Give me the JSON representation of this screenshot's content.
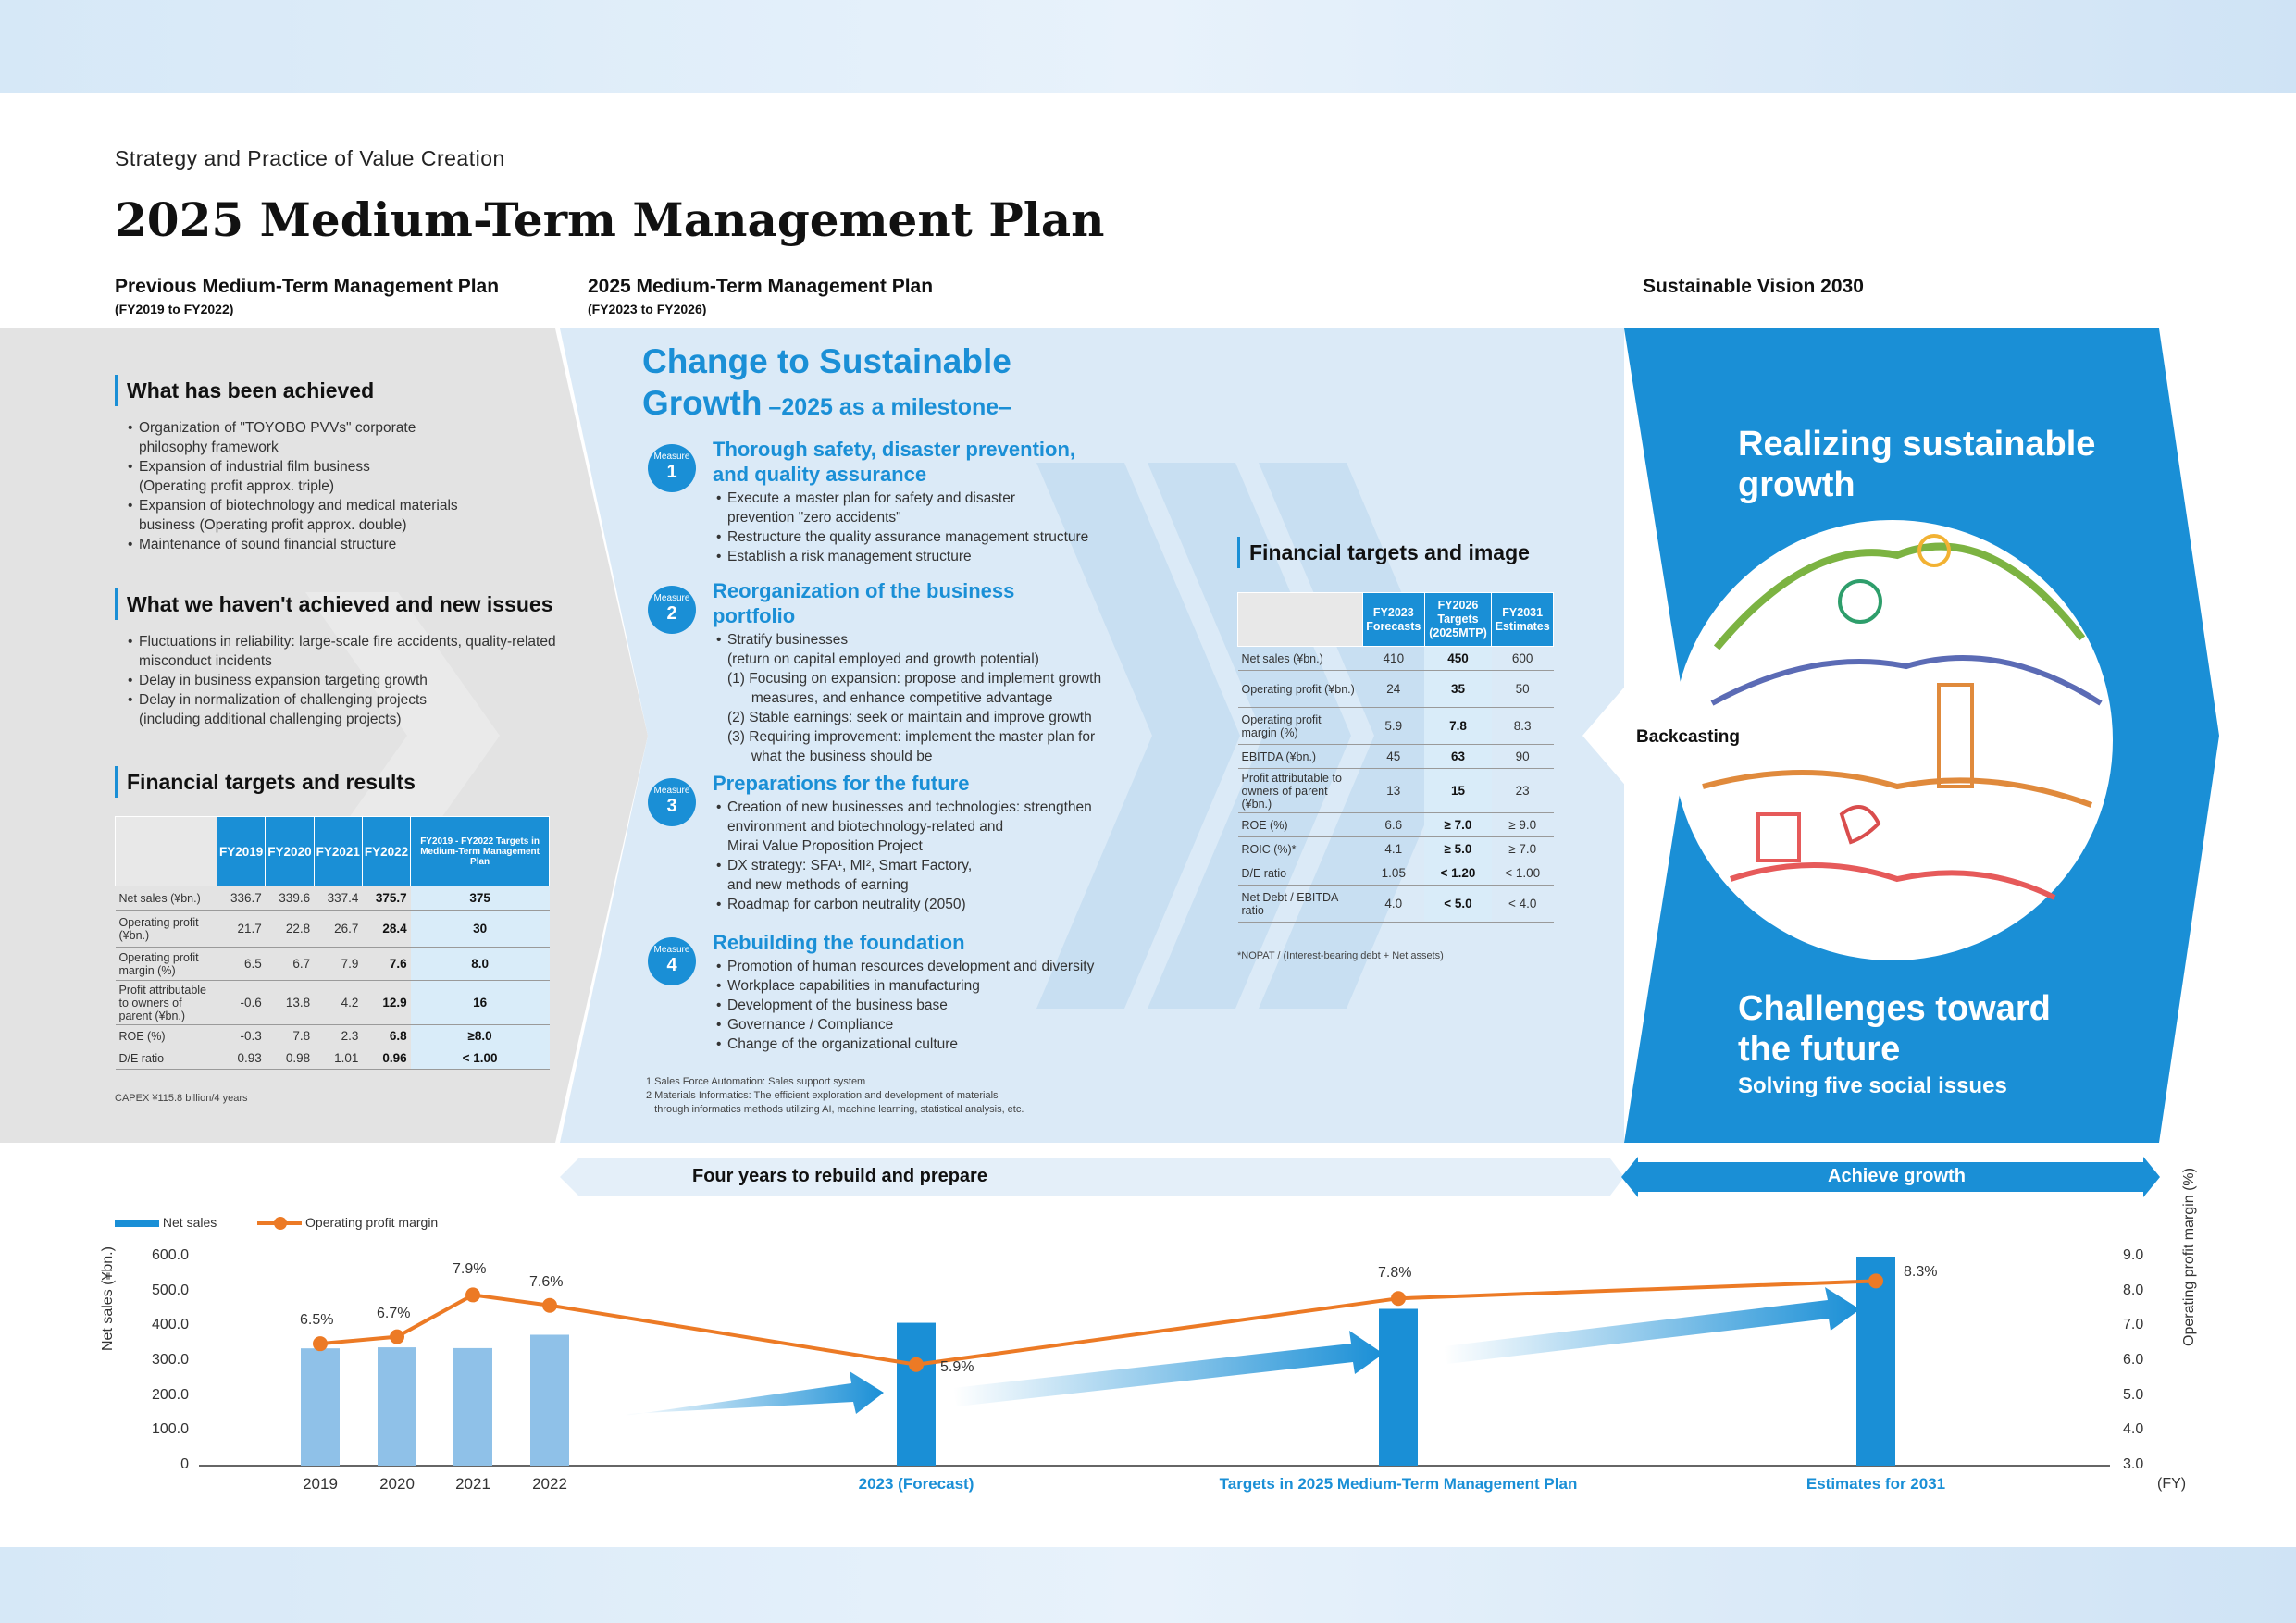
{
  "header": {
    "section": "Strategy and Practice of Value Creation",
    "title": "2025 Medium-Term Management Plan"
  },
  "columns": {
    "previous": {
      "title": "Previous Medium-Term Management Plan",
      "period": "(FY2019 to FY2022)"
    },
    "current": {
      "title": "2025 Medium-Term Management Plan",
      "period": "(FY2023 to FY2026)"
    },
    "vision": {
      "title": "Sustainable Vision 2030"
    }
  },
  "achieved": {
    "title": "What has been achieved",
    "items": [
      [
        "Organization of \"TOYOBO PVVs\" corporate",
        "philosophy framework"
      ],
      [
        "Expansion of industrial film business",
        "(Operating profit approx. triple)"
      ],
      [
        "Expansion of biotechnology and medical materials",
        "business (Operating profit approx. double)"
      ],
      [
        "Maintenance of  sound financial structure"
      ]
    ]
  },
  "not_achieved": {
    "title": "What we haven't achieved and new issues",
    "items": [
      [
        "Fluctuations in reliability: large-scale fire accidents, quality-related",
        "misconduct incidents"
      ],
      [
        "Delay in business expansion targeting growth"
      ],
      [
        "Delay in normalization of challenging projects",
        "(including additional challenging projects)"
      ]
    ]
  },
  "results_table": {
    "title": "Financial targets and results",
    "headers": [
      "FY2019",
      "FY2020",
      "FY2021",
      "FY2022",
      "FY2019 - FY2022 Targets in Medium-Term Management Plan"
    ],
    "rows": [
      {
        "label": "Net sales (¥bn.)",
        "values": [
          "336.7",
          "339.6",
          "337.4",
          "375.7",
          "375"
        ]
      },
      {
        "label": "Operating profit (¥bn.)",
        "values": [
          "21.7",
          "22.8",
          "26.7",
          "28.4",
          "30"
        ]
      },
      {
        "label": "Operating profit margin (%)",
        "values": [
          "6.5",
          "6.7",
          "7.9",
          "7.6",
          "8.0"
        ]
      },
      {
        "label": "Profit attributable to owners of parent (¥bn.)",
        "values": [
          "-0.6",
          "13.8",
          "4.2",
          "12.9",
          "16"
        ]
      },
      {
        "label": "ROE (%)",
        "values": [
          "-0.3",
          "7.8",
          "2.3",
          "6.8",
          "≥8.0"
        ]
      },
      {
        "label": "D/E ratio",
        "values": [
          "0.93",
          "0.98",
          "1.01",
          "0.96",
          "< 1.00"
        ]
      }
    ],
    "note": "CAPEX ¥115.8 billion/4 years"
  },
  "change": {
    "title_line1": "Change to Sustainable",
    "title_line2": "Growth",
    "subtitle": " –2025 as a milestone–"
  },
  "measures": [
    {
      "badge": "Measure",
      "number": "1",
      "title": [
        "Thorough safety, disaster prevention,",
        "and quality assurance"
      ],
      "items": [
        {
          "b": true,
          "t": "Execute a master plan for safety and disaster"
        },
        {
          "b": false,
          "t": "prevention \"zero accidents\""
        },
        {
          "b": true,
          "t": "Restructure the quality assurance management structure"
        },
        {
          "b": true,
          "t": "Establish a risk management structure"
        }
      ]
    },
    {
      "badge": "Measure",
      "number": "2",
      "title": [
        "Reorganization of the business",
        "portfolio"
      ],
      "items": [
        {
          "b": true,
          "t": "Stratify businesses"
        },
        {
          "b": false,
          "t": "(return on capital employed and growth potential)"
        },
        {
          "b": false,
          "t": "(1) Focusing on expansion: propose and implement growth"
        },
        {
          "b": false,
          "t": "      measures, and enhance competitive advantage"
        },
        {
          "b": false,
          "t": "(2) Stable earnings: seek or maintain and improve growth"
        },
        {
          "b": false,
          "t": "(3) Requiring improvement: implement the master plan for"
        },
        {
          "b": false,
          "t": "      what the business should be"
        }
      ]
    },
    {
      "badge": "Measure",
      "number": "3",
      "title": [
        "Preparations for the future"
      ],
      "items": [
        {
          "b": true,
          "t": "Creation of new businesses and technologies: strengthen"
        },
        {
          "b": false,
          "t": "environment and biotechnology-related and"
        },
        {
          "b": false,
          "t": "Mirai Value Proposition Project"
        },
        {
          "b": true,
          "t": "DX strategy: SFA¹, MI², Smart Factory,"
        },
        {
          "b": false,
          "t": "and new methods of earning"
        },
        {
          "b": true,
          "t": "Roadmap for carbon neutrality (2050)"
        }
      ]
    },
    {
      "badge": "Measure",
      "number": "4",
      "title": [
        "Rebuilding the  foundation"
      ],
      "items": [
        {
          "b": true,
          "t": "Promotion of human resources development and diversity"
        },
        {
          "b": true,
          "t": "Workplace capabilities in manufacturing"
        },
        {
          "b": true,
          "t": "Development of the business base"
        },
        {
          "b": true,
          "t": "Governance / Compliance"
        },
        {
          "b": true,
          "t": "Change of the organizational culture"
        }
      ]
    }
  ],
  "footnotes": [
    "1 Sales Force Automation: Sales support system",
    "2 Materials Informatics: The efficient exploration and development of materials",
    "   through informatics methods utilizing AI, machine learning, statistical analysis, etc."
  ],
  "targets_table": {
    "title": "Financial targets and image",
    "headers": [
      "FY2023 Forecasts",
      "FY2026 Targets (2025MTP)",
      "FY2031 Estimates"
    ],
    "rows": [
      {
        "label": "Net sales (¥bn.)",
        "values": [
          "410",
          "450",
          "600"
        ]
      },
      {
        "label": "Operating profit (¥bn.)",
        "values": [
          "24",
          "35",
          "50"
        ]
      },
      {
        "label": "Operating profit margin (%)",
        "values": [
          "5.9",
          "7.8",
          "8.3"
        ]
      },
      {
        "label": "EBITDA (¥bn.)",
        "values": [
          "45",
          "63",
          "90"
        ]
      },
      {
        "label": "Profit attributable to owners of parent (¥bn.)",
        "values": [
          "13",
          "15",
          "23"
        ]
      },
      {
        "label": "ROE (%)",
        "values": [
          "6.6",
          "≥ 7.0",
          "≥ 9.0"
        ]
      },
      {
        "label": "ROIC (%)*",
        "values": [
          "4.1",
          "≥ 5.0",
          "≥ 7.0"
        ]
      },
      {
        "label": "D/E ratio",
        "values": [
          "1.05",
          "< 1.20",
          "< 1.00"
        ]
      },
      {
        "label": "Net Debt / EBITDA ratio",
        "values": [
          "4.0",
          "< 5.0",
          "< 4.0"
        ]
      }
    ],
    "note": "*NOPAT / (Interest-bearing debt + Net assets)"
  },
  "vision": {
    "line1": "Realizing sustainable",
    "line2": "growth",
    "challenge1": "Challenges toward",
    "challenge2": "the future",
    "challenge_sub": "Solving five social issues",
    "backcasting": "Backcasting"
  },
  "banners": {
    "rebuild": "Four years to rebuild and prepare",
    "growth": "Achieve growth"
  },
  "chart_data": {
    "type": "bar",
    "legend": [
      "Net sales",
      "Operating profit margin"
    ],
    "categories": [
      "2019",
      "2020",
      "2021",
      "2022",
      "2023 (Forecast)",
      "Targets in 2025 Medium-Term Management Plan",
      "Estimates for 2031"
    ],
    "series": [
      {
        "name": "Net sales",
        "type": "bar",
        "axis": "left",
        "values": [
          336.7,
          339.6,
          337.4,
          375.7,
          410,
          450,
          600
        ]
      },
      {
        "name": "Operating profit margin",
        "type": "line",
        "axis": "right",
        "values": [
          6.5,
          6.7,
          7.9,
          7.6,
          5.9,
          7.8,
          8.3
        ],
        "labels": [
          "6.5%",
          "6.7%",
          "7.9%",
          "7.6%",
          "5.9%",
          "7.8%",
          "8.3%"
        ]
      }
    ],
    "ylabel": "Net sales (¥bn.)",
    "y2label": "Operating profit margin (%)",
    "xunit": "(FY)",
    "ylim": [
      0,
      600
    ],
    "y2lim": [
      3.0,
      9.0
    ],
    "yticks": [
      "0",
      "100.0",
      "200.0",
      "300.0",
      "400.0",
      "500.0",
      "600.0"
    ],
    "y2ticks": [
      "3.0",
      "4.0",
      "5.0",
      "6.0",
      "7.0",
      "8.0",
      "9.0"
    ],
    "colors": {
      "past_bar": "#8fc1e8",
      "future_bar": "#1a8fd6",
      "line": "#ec7a25"
    }
  }
}
